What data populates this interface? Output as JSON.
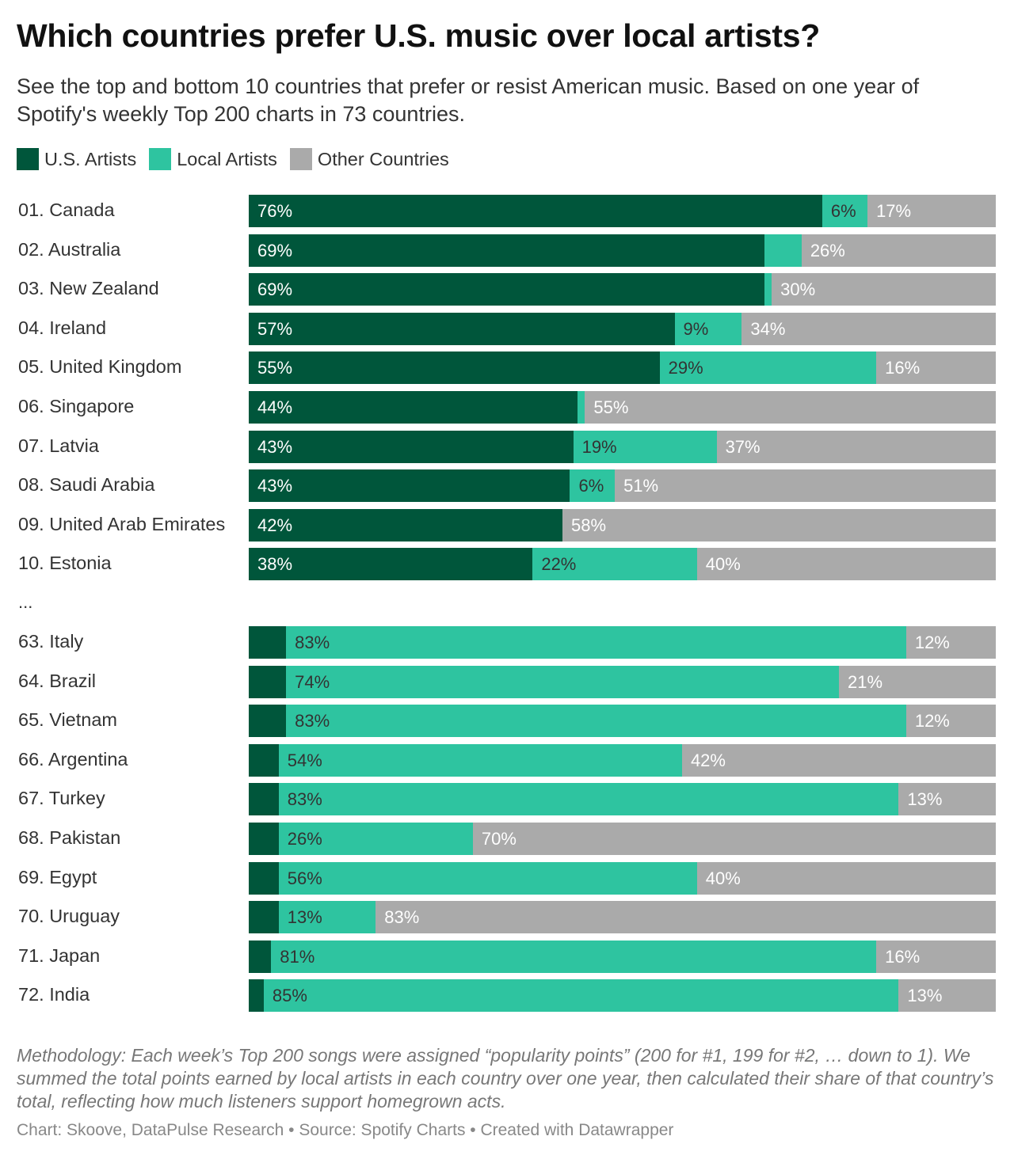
{
  "chart_data": {
    "type": "bar",
    "orientation": "horizontal",
    "stacked": true,
    "title": "Which countries prefer U.S. music over local artists?",
    "subtitle": "See the top and bottom 10 countries that prefer or resist American music. Based on one year of Spotify's weekly Top 200 charts in 73 countries.",
    "xlim": [
      0,
      100
    ],
    "unit": "%",
    "grid": false,
    "legend_placement": "top-left",
    "series": [
      {
        "name": "U.S. Artists",
        "color": "#00563b",
        "label_color": "#ffffff"
      },
      {
        "name": "Local Artists",
        "color": "#2ec4a0",
        "label_color": "#333333"
      },
      {
        "name": "Other Countries",
        "color": "#aaaaaa",
        "label_color": "#ffffff"
      }
    ],
    "groups": [
      {
        "rows": [
          {
            "label": "01. Canada",
            "values": [
              76,
              6,
              17
            ]
          },
          {
            "label": "02. Australia",
            "values": [
              69,
              5,
              26
            ]
          },
          {
            "label": "03. New Zealand",
            "values": [
              69,
              1,
              30
            ]
          },
          {
            "label": "04. Ireland",
            "values": [
              57,
              9,
              34
            ]
          },
          {
            "label": "05. United Kingdom",
            "values": [
              55,
              29,
              16
            ]
          },
          {
            "label": "06. Singapore",
            "values": [
              44,
              1,
              55
            ]
          },
          {
            "label": "07. Latvia",
            "values": [
              43,
              19,
              37
            ]
          },
          {
            "label": "08. Saudi Arabia",
            "values": [
              43,
              6,
              51
            ]
          },
          {
            "label": "09. United Arab Emirates",
            "values": [
              42,
              0,
              58
            ]
          },
          {
            "label": "10. Estonia",
            "values": [
              38,
              22,
              40
            ]
          }
        ]
      },
      {
        "rows": [
          {
            "label": "63. Italy",
            "values": [
              5,
              83,
              12
            ]
          },
          {
            "label": "64. Brazil",
            "values": [
              5,
              74,
              21
            ]
          },
          {
            "label": "65. Vietnam",
            "values": [
              5,
              83,
              12
            ]
          },
          {
            "label": "66. Argentina",
            "values": [
              4,
              54,
              42
            ]
          },
          {
            "label": "67. Turkey",
            "values": [
              4,
              83,
              13
            ]
          },
          {
            "label": "68. Pakistan",
            "values": [
              4,
              26,
              70
            ]
          },
          {
            "label": "69. Egypt",
            "values": [
              4,
              56,
              40
            ]
          },
          {
            "label": "70. Uruguay",
            "values": [
              4,
              13,
              83
            ]
          },
          {
            "label": "71. Japan",
            "values": [
              3,
              81,
              16
            ]
          },
          {
            "label": "72. India",
            "values": [
              2,
              85,
              13
            ]
          }
        ]
      }
    ],
    "gap_label": "...",
    "notes": "Methodology: Each week’s Top 200 songs were assigned “popularity points” (200 for #1, 199 for #2, … down to 1). We summed the total points earned by local artists in each country over one year, then calculated their share of that country’s total, reflecting how much listeners support homegrown acts.",
    "credit": "Chart: Skoove, DataPulse Research • Source: Spotify Charts • Created with Datawrapper"
  }
}
